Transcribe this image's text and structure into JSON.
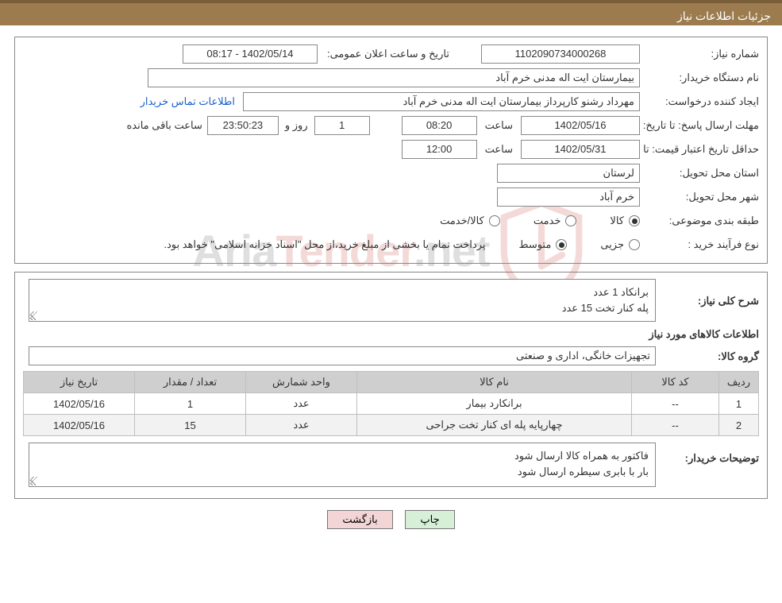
{
  "header": {
    "title": "جزئیات اطلاعات نیاز"
  },
  "fields": {
    "need_no_label": "شماره نیاز:",
    "need_no": "1102090734000268",
    "announce_label": "تاریخ و ساعت اعلان عمومی:",
    "announce_val": "1402/05/14 - 08:17",
    "buyer_org_label": "نام دستگاه خریدار:",
    "buyer_org": "بیمارستان ایت اله مدنی خرم آباد",
    "requester_label": "ایجاد کننده درخواست:",
    "requester": "مهرداد رشنو کارپرداز بیمارستان ایت اله مدنی خرم آباد",
    "contact_link": "اطلاعات تماس خریدار",
    "reply_deadline_label": "مهلت ارسال پاسخ: تا تاریخ:",
    "reply_date": "1402/05/16",
    "time_label": "ساعت",
    "reply_time": "08:20",
    "days_count": "1",
    "days_and": "روز و",
    "time_left": "23:50:23",
    "time_left_label": "ساعت باقی مانده",
    "price_valid_label": "حداقل تاریخ اعتبار قیمت: تا تاریخ:",
    "price_valid_date": "1402/05/31",
    "price_valid_time": "12:00",
    "province_label": "استان محل تحویل:",
    "province": "لرستان",
    "city_label": "شهر محل تحویل:",
    "city": "خرم آباد",
    "category_label": "طبقه بندی موضوعی:",
    "cat_goods": "کالا",
    "cat_service": "خدمت",
    "cat_goods_service": "کالا/خدمت",
    "process_label": "نوع فرآیند خرید :",
    "process_small": "جزیی",
    "process_medium": "متوسط",
    "process_note": "پرداخت تمام یا بخشی از مبلغ خرید،از محل \"اسناد خزانه اسلامی\" خواهد بود.",
    "summary_label": "شرح کلی نیاز:",
    "summary_line1": "برانکاد 1 عدد",
    "summary_line2": "پله کنار تخت 15 عدد",
    "items_heading": "اطلاعات کالاهای مورد نیاز",
    "group_label": "گروه کالا:",
    "group_val": "تجهیزات خانگی، اداری و صنعتی",
    "buyer_notes_label": "توضیحات خریدار:",
    "buyer_notes_l1": "فاکتور به همراه کالا ارسال شود",
    "buyer_notes_l2": "بار با بابری سیطره ارسال شود"
  },
  "table": {
    "headers": {
      "row": "ردیف",
      "code": "کد کالا",
      "name": "نام کالا",
      "unit": "واحد شمارش",
      "qty": "تعداد / مقدار",
      "date": "تاریخ نیاز"
    },
    "rows": [
      {
        "n": "1",
        "code": "--",
        "name": "برانکارد بیمار",
        "unit": "عدد",
        "qty": "1",
        "date": "1402/05/16"
      },
      {
        "n": "2",
        "code": "--",
        "name": "چهارپایه پله ای کنار تخت جراحی",
        "unit": "عدد",
        "qty": "15",
        "date": "1402/05/16"
      }
    ]
  },
  "buttons": {
    "print": "چاپ",
    "back": "بازگشت"
  },
  "watermark": {
    "text_a": "Aria",
    "text_b": "Tender",
    "text_c": ".net"
  },
  "colors": {
    "header_bg": "#9c7c4f",
    "header_border": "#7a5e3a",
    "btn_print_bg": "#d7efd7",
    "btn_back_bg": "#f3d5d5",
    "link": "#1a5fcc",
    "shield": "#c0392b"
  }
}
